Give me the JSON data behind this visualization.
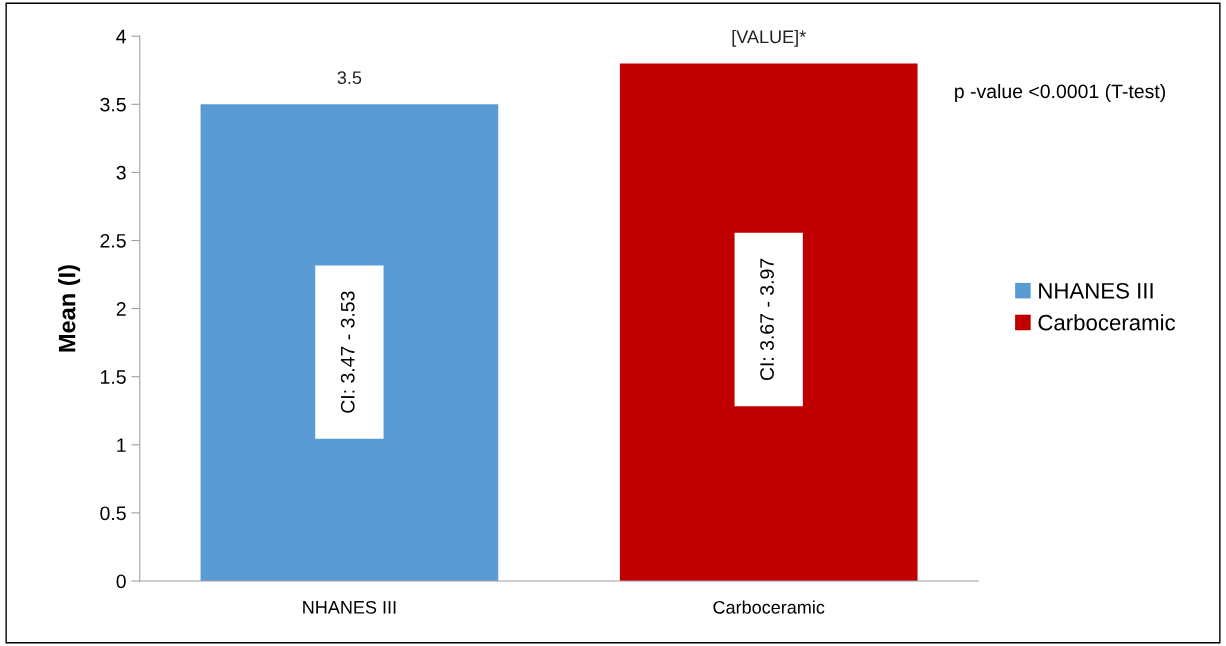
{
  "chart_data": {
    "type": "bar",
    "ylabel": "Mean (I)",
    "categories": [
      "NHANES III",
      "Carboceramic"
    ],
    "series": [
      {
        "name": "NHANES III",
        "color": "#5b9bd5",
        "values": [
          3.5,
          null
        ],
        "value_labels": [
          "3.5",
          null
        ]
      },
      {
        "name": "Carboceramic",
        "color": "#c00000",
        "values": [
          null,
          3.8
        ],
        "value_labels": [
          null,
          "[VALUE]*"
        ]
      }
    ],
    "ylim": [
      0,
      4
    ],
    "yticks": [
      0,
      0.5,
      1,
      1.5,
      2,
      2.5,
      3,
      3.5,
      4
    ],
    "grid": false,
    "legend": "right",
    "annotations": [
      "CI: 3.47 - 3.53",
      "CI: 3.67 - 3.97",
      "p -value <0.0001 (T-test)"
    ]
  }
}
